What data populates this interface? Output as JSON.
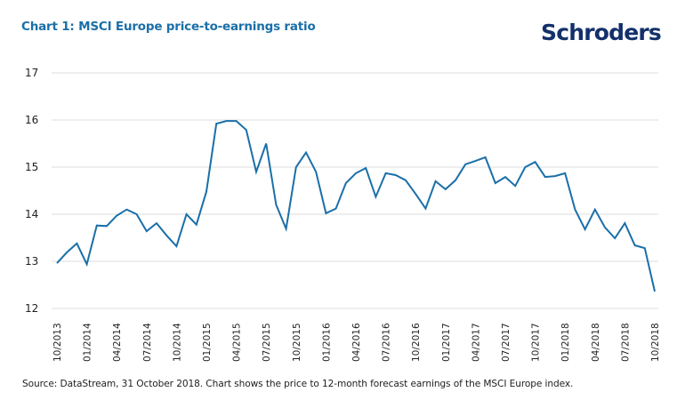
{
  "header": {
    "title": "Chart 1: MSCI Europe price-to-earnings ratio",
    "logo": "Schroders"
  },
  "footer": {
    "source": "Source: DataStream, 31 October 2018. Chart shows the price to 12-month forecast earnings of the MSCI Europe index."
  },
  "colors": {
    "line": "#1a6fa8",
    "title": "#1a6fa8",
    "logo": "#13306b",
    "grid": "#dcdcdc"
  },
  "chart_data": {
    "type": "line",
    "title": "Chart 1: MSCI Europe price-to-earnings ratio",
    "xlabel": "",
    "ylabel": "",
    "ylim": [
      12,
      17
    ],
    "yticks": [
      12,
      13,
      14,
      15,
      16,
      17
    ],
    "grid": true,
    "legend": "none",
    "x_tick_labels": [
      "10/2013",
      "01/2014",
      "04/2014",
      "07/2014",
      "10/2014",
      "01/2015",
      "04/2015",
      "07/2015",
      "10/2015",
      "01/2016",
      "04/2016",
      "07/2016",
      "10/2016",
      "01/2017",
      "04/2017",
      "07/2017",
      "10/2017",
      "01/2018",
      "04/2018",
      "07/2018",
      "10/2018"
    ],
    "x_start": "10/2013",
    "x_end": "10/2018",
    "frequency": "monthly",
    "series": [
      {
        "name": "MSCI Europe P/E",
        "values": [
          12.96,
          13.19,
          13.38,
          12.94,
          13.76,
          13.75,
          13.97,
          14.1,
          14.0,
          13.64,
          13.81,
          13.55,
          13.32,
          14.0,
          13.78,
          14.48,
          15.92,
          15.98,
          15.98,
          15.79,
          14.9,
          15.5,
          14.2,
          13.69,
          15.0,
          15.31,
          14.9,
          14.02,
          14.12,
          14.66,
          14.87,
          14.98,
          14.37,
          14.87,
          14.83,
          14.72,
          14.43,
          14.12,
          14.7,
          14.53,
          14.72,
          15.06,
          15.13,
          15.21,
          14.66,
          14.79,
          14.6,
          15.0,
          15.11,
          14.79,
          14.81,
          14.87,
          14.1,
          13.68,
          14.1,
          13.72,
          13.49,
          13.81,
          13.34,
          13.28,
          12.36
        ]
      }
    ]
  }
}
